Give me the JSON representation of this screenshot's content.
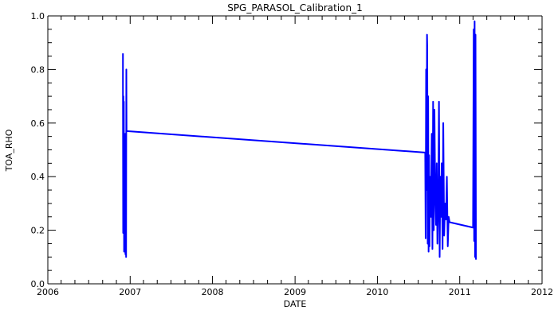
{
  "chart_data": {
    "type": "line",
    "title": "SPG_PARASOL_Calibration_1",
    "xlabel": "DATE",
    "ylabel": "TOA_RHO",
    "x_axis_type": "date",
    "xlim": [
      "2006-01-01",
      "2012-01-01"
    ],
    "ylim": [
      0.0,
      1.0
    ],
    "x_ticks": [
      "2006",
      "2007",
      "2008",
      "2009",
      "2010",
      "2011",
      "2012"
    ],
    "y_ticks": [
      "0.0",
      "0.2",
      "0.4",
      "0.6",
      "0.8",
      "1.0"
    ],
    "grid": false,
    "line_color": "#0000ff",
    "series": [
      {
        "points": [
          [
            "2006-11-30",
            0.86
          ],
          [
            "2006-11-30",
            0.75
          ],
          [
            "2006-12-01",
            0.19
          ],
          [
            "2006-12-02",
            0.7
          ],
          [
            "2006-12-03",
            0.2
          ],
          [
            "2006-12-04",
            0.68
          ],
          [
            "2006-12-05",
            0.12
          ],
          [
            "2006-12-06",
            0.44
          ],
          [
            "2006-12-07",
            0.2
          ],
          [
            "2006-12-08",
            0.5
          ],
          [
            "2006-12-09",
            0.13
          ],
          [
            "2006-12-10",
            0.56
          ],
          [
            "2006-12-11",
            0.11
          ],
          [
            "2006-12-12",
            0.42
          ],
          [
            "2006-12-13",
            0.15
          ],
          [
            "2006-12-14",
            0.1
          ],
          [
            "2006-12-15",
            0.8
          ],
          [
            "2006-12-16",
            0.57
          ],
          [
            "2010-08-01",
            0.49
          ],
          [
            "2010-08-03",
            0.17
          ],
          [
            "2010-08-05",
            0.8
          ],
          [
            "2010-08-07",
            0.35
          ],
          [
            "2010-08-09",
            0.93
          ],
          [
            "2010-08-10",
            0.88
          ],
          [
            "2010-08-12",
            0.15
          ],
          [
            "2010-08-14",
            0.7
          ],
          [
            "2010-08-16",
            0.12
          ],
          [
            "2010-08-18",
            0.48
          ],
          [
            "2010-08-20",
            0.14
          ],
          [
            "2010-08-22",
            0.4
          ],
          [
            "2010-08-26",
            0.25
          ],
          [
            "2010-08-30",
            0.56
          ],
          [
            "2010-09-02",
            0.13
          ],
          [
            "2010-09-05",
            0.68
          ],
          [
            "2010-09-08",
            0.2
          ],
          [
            "2010-09-11",
            0.65
          ],
          [
            "2010-09-14",
            0.35
          ],
          [
            "2010-09-18",
            0.22
          ],
          [
            "2010-09-21",
            0.45
          ],
          [
            "2010-09-24",
            0.15
          ],
          [
            "2010-09-28",
            0.3
          ],
          [
            "2010-10-01",
            0.68
          ],
          [
            "2010-10-04",
            0.1
          ],
          [
            "2010-10-07",
            0.4
          ],
          [
            "2010-10-10",
            0.25
          ],
          [
            "2010-10-13",
            0.45
          ],
          [
            "2010-10-17",
            0.13
          ],
          [
            "2010-10-20",
            0.6
          ],
          [
            "2010-10-24",
            0.18
          ],
          [
            "2010-10-28",
            0.3
          ],
          [
            "2010-11-01",
            0.24
          ],
          [
            "2010-11-05",
            0.4
          ],
          [
            "2010-11-09",
            0.14
          ],
          [
            "2010-11-13",
            0.25
          ],
          [
            "2010-11-17",
            0.23
          ],
          [
            "2011-03-01",
            0.21
          ],
          [
            "2011-03-04",
            0.95
          ],
          [
            "2011-03-06",
            0.16
          ],
          [
            "2011-03-08",
            0.98
          ],
          [
            "2011-03-10",
            0.1
          ],
          [
            "2011-03-12",
            0.93
          ],
          [
            "2011-03-14",
            0.09
          ]
        ]
      }
    ]
  }
}
